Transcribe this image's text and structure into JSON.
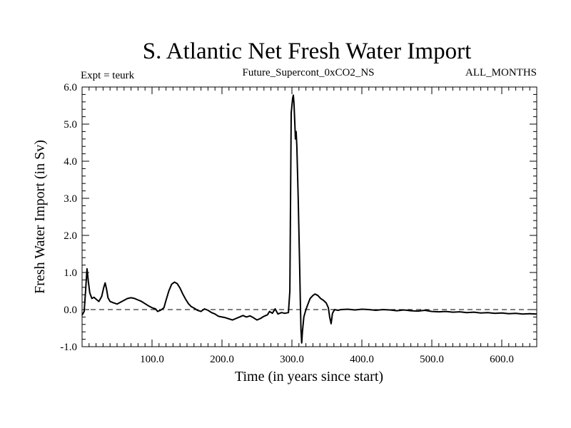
{
  "chart_data": {
    "type": "line",
    "title": "S. Atlantic Net Fresh Water Import",
    "subtitle_left": "Expt = teurk",
    "subtitle_center": "Future_Supercont_0xCO2_NS",
    "subtitle_right": "ALL_MONTHS",
    "xlabel": "Time (in years since start)",
    "ylabel": "Fresh Water Import (in Sv)",
    "xlim": [
      0,
      650
    ],
    "ylim": [
      -1.0,
      6.0
    ],
    "x_ticks": [
      100,
      200,
      300,
      400,
      500,
      600
    ],
    "x_tick_labels": [
      "100.0",
      "200.0",
      "300.0",
      "400.0",
      "500.0",
      "600.0"
    ],
    "y_ticks": [
      -1,
      0,
      1,
      2,
      3,
      4,
      5,
      6
    ],
    "y_tick_labels": [
      "-1.0",
      "0.0",
      "1.0",
      "2.0",
      "3.0",
      "4.0",
      "5.0",
      "6.0"
    ],
    "reference_line": {
      "y": 0.0,
      "style": "dashed"
    },
    "series": [
      {
        "points": [
          [
            0,
            -0.15
          ],
          [
            3,
            -0.05
          ],
          [
            5,
            0.5
          ],
          [
            7,
            1.1
          ],
          [
            9,
            0.75
          ],
          [
            11,
            0.45
          ],
          [
            14,
            0.3
          ],
          [
            17,
            0.33
          ],
          [
            20,
            0.28
          ],
          [
            24,
            0.22
          ],
          [
            28,
            0.35
          ],
          [
            31,
            0.6
          ],
          [
            33,
            0.72
          ],
          [
            35,
            0.55
          ],
          [
            37,
            0.32
          ],
          [
            40,
            0.22
          ],
          [
            45,
            0.18
          ],
          [
            50,
            0.15
          ],
          [
            55,
            0.2
          ],
          [
            60,
            0.25
          ],
          [
            65,
            0.3
          ],
          [
            70,
            0.32
          ],
          [
            75,
            0.3
          ],
          [
            80,
            0.26
          ],
          [
            85,
            0.22
          ],
          [
            90,
            0.16
          ],
          [
            95,
            0.1
          ],
          [
            100,
            0.05
          ],
          [
            105,
            0.02
          ],
          [
            108,
            -0.05
          ],
          [
            112,
            -0.02
          ],
          [
            117,
            0.05
          ],
          [
            120,
            0.25
          ],
          [
            124,
            0.5
          ],
          [
            128,
            0.68
          ],
          [
            132,
            0.74
          ],
          [
            136,
            0.7
          ],
          [
            140,
            0.58
          ],
          [
            144,
            0.42
          ],
          [
            148,
            0.28
          ],
          [
            152,
            0.16
          ],
          [
            156,
            0.08
          ],
          [
            160,
            0.04
          ],
          [
            165,
            -0.02
          ],
          [
            170,
            -0.05
          ],
          [
            175,
            0.02
          ],
          [
            180,
            -0.02
          ],
          [
            185,
            -0.08
          ],
          [
            190,
            -0.12
          ],
          [
            195,
            -0.18
          ],
          [
            200,
            -0.2
          ],
          [
            205,
            -0.22
          ],
          [
            210,
            -0.25
          ],
          [
            215,
            -0.28
          ],
          [
            220,
            -0.24
          ],
          [
            225,
            -0.2
          ],
          [
            230,
            -0.16
          ],
          [
            235,
            -0.2
          ],
          [
            240,
            -0.17
          ],
          [
            245,
            -0.22
          ],
          [
            250,
            -0.28
          ],
          [
            255,
            -0.24
          ],
          [
            260,
            -0.18
          ],
          [
            265,
            -0.14
          ],
          [
            268,
            -0.05
          ],
          [
            272,
            -0.1
          ],
          [
            276,
            0.02
          ],
          [
            280,
            -0.12
          ],
          [
            285,
            -0.08
          ],
          [
            290,
            -0.1
          ],
          [
            295,
            -0.08
          ],
          [
            297,
            0.5
          ],
          [
            299,
            5.3
          ],
          [
            301,
            5.7
          ],
          [
            302,
            5.78
          ],
          [
            303,
            5.55
          ],
          [
            304,
            5.1
          ],
          [
            305,
            4.6
          ],
          [
            306,
            4.8
          ],
          [
            307,
            4.4
          ],
          [
            309,
            3.0
          ],
          [
            311,
            1.2
          ],
          [
            312,
            0.2
          ],
          [
            313,
            -0.55
          ],
          [
            314,
            -0.9
          ],
          [
            315,
            -0.6
          ],
          [
            317,
            -0.2
          ],
          [
            320,
            0.0
          ],
          [
            323,
            0.15
          ],
          [
            326,
            0.3
          ],
          [
            330,
            0.38
          ],
          [
            333,
            0.42
          ],
          [
            337,
            0.38
          ],
          [
            341,
            0.3
          ],
          [
            345,
            0.25
          ],
          [
            349,
            0.18
          ],
          [
            352,
            0.05
          ],
          [
            354,
            -0.2
          ],
          [
            356,
            -0.38
          ],
          [
            358,
            -0.1
          ],
          [
            361,
            0.0
          ],
          [
            366,
            -0.02
          ],
          [
            370,
            0.0
          ],
          [
            380,
            0.01
          ],
          [
            390,
            -0.01
          ],
          [
            400,
            0.01
          ],
          [
            410,
            0.0
          ],
          [
            420,
            -0.02
          ],
          [
            430,
            0.0
          ],
          [
            440,
            -0.01
          ],
          [
            450,
            -0.03
          ],
          [
            460,
            -0.01
          ],
          [
            470,
            -0.03
          ],
          [
            480,
            -0.04
          ],
          [
            490,
            -0.02
          ],
          [
            500,
            -0.05
          ],
          [
            510,
            -0.06
          ],
          [
            520,
            -0.05
          ],
          [
            530,
            -0.07
          ],
          [
            540,
            -0.06
          ],
          [
            550,
            -0.08
          ],
          [
            560,
            -0.07
          ],
          [
            570,
            -0.09
          ],
          [
            580,
            -0.08
          ],
          [
            590,
            -0.1
          ],
          [
            600,
            -0.09
          ],
          [
            610,
            -0.11
          ],
          [
            620,
            -0.1
          ],
          [
            630,
            -0.12
          ],
          [
            640,
            -0.11
          ],
          [
            650,
            -0.12
          ]
        ]
      }
    ],
    "legend": "none",
    "grid": false
  }
}
